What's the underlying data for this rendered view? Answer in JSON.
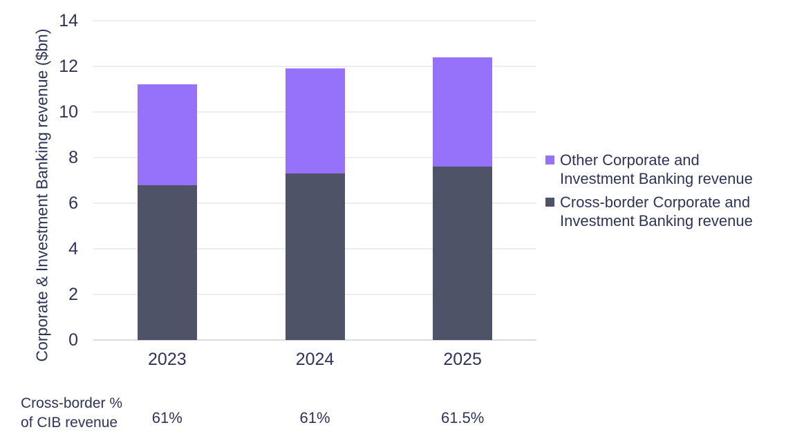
{
  "chart_data": {
    "type": "bar",
    "stacked": true,
    "title": "",
    "categories": [
      "2023",
      "2024",
      "2025"
    ],
    "series": [
      {
        "name": "Cross-border Corporate and Investment Banking revenue",
        "color": "#4E5368",
        "values": [
          6.8,
          7.3,
          7.6
        ]
      },
      {
        "name": "Other Corporate and Investment Banking revenue",
        "color": "#9672FA",
        "values": [
          4.4,
          4.6,
          4.8
        ]
      }
    ],
    "stack_totals": [
      11.2,
      11.9,
      12.4
    ],
    "xlabel": "",
    "ylabel": "Corporate & Investment Banking revenue ($bn)",
    "ylim": [
      0,
      14
    ],
    "yticks": [
      0,
      2,
      4,
      6,
      8,
      10,
      12,
      14
    ],
    "grid": "horizontal",
    "legend_position": "right",
    "legend": [
      {
        "swatch_color": "#9672FA",
        "lines": [
          "Other Corporate and",
          "Investment Banking revenue"
        ]
      },
      {
        "swatch_color": "#4E5368",
        "lines": [
          "Cross-border Corporate and",
          "Investment Banking revenue"
        ]
      }
    ],
    "footer_row": {
      "label": "Cross-border % of CIB revenue",
      "label_lines": [
        "Cross-border %",
        "of CIB revenue"
      ],
      "values": [
        "61%",
        "61%",
        "61.5%"
      ]
    }
  },
  "colors": {
    "text": "#2F3456",
    "gridline": "#EDEDF0",
    "baseline": "#DBDBE0",
    "background": "#FFFFFF",
    "purple": "#9672FA",
    "dark_slate": "#4E5368"
  }
}
